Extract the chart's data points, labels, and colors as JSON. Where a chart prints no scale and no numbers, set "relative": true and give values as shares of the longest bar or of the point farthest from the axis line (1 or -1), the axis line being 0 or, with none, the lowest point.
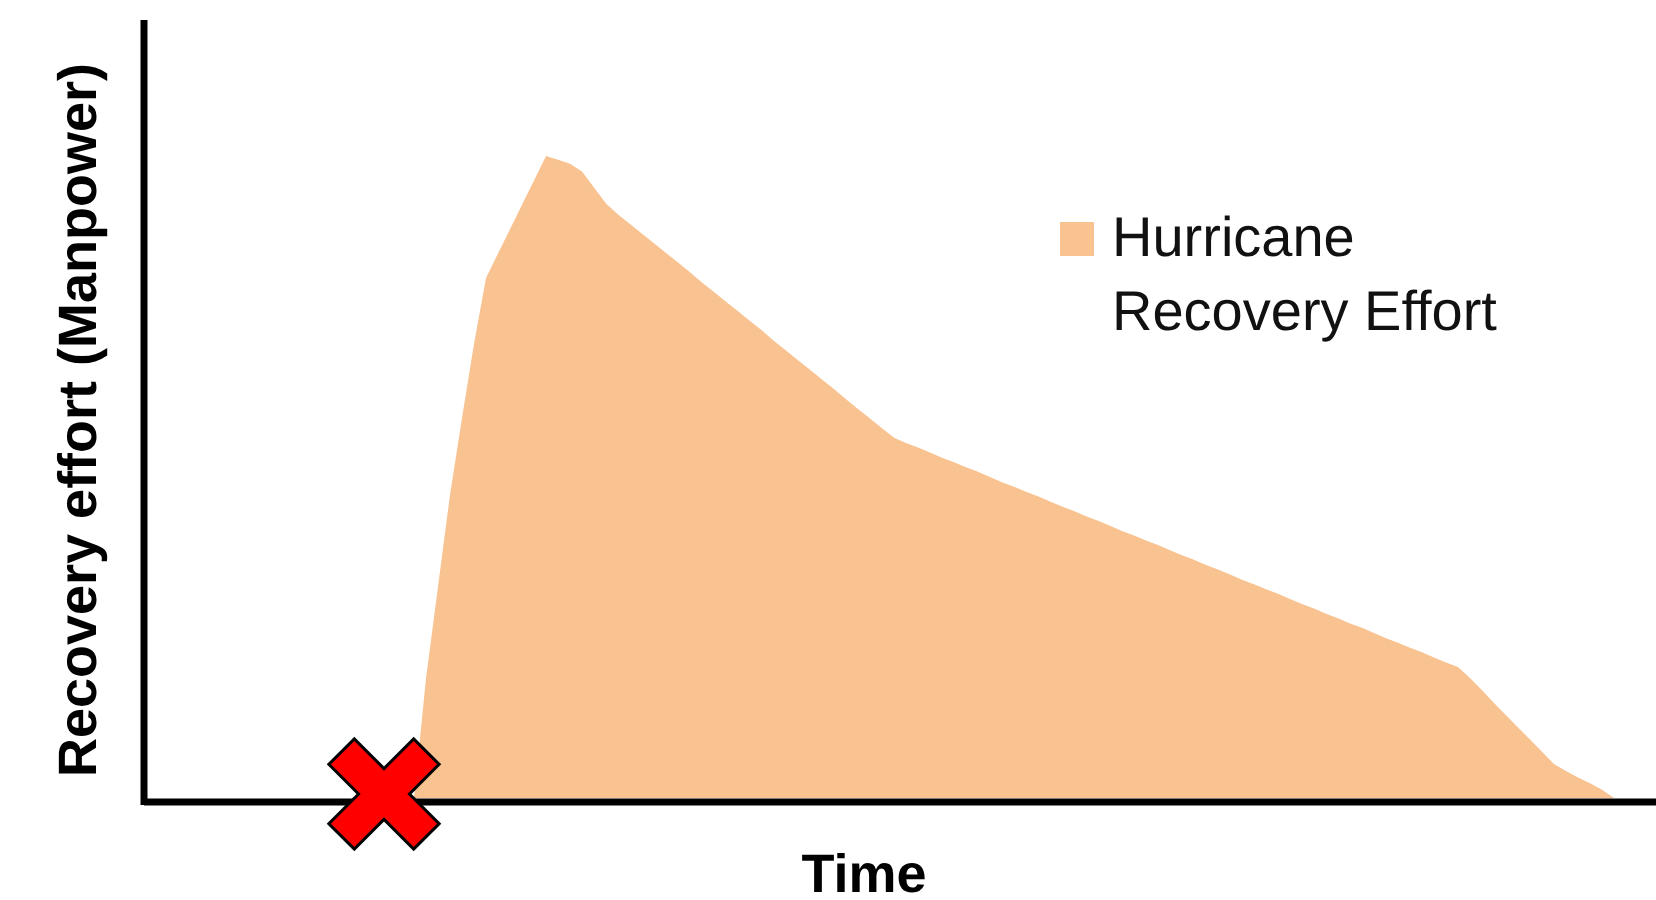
{
  "chart_data": {
    "type": "area",
    "xlabel": "Time",
    "ylabel": "Recovery effort (Manpower)",
    "relative": true,
    "legend": "top right",
    "categories": [
      null,
      null,
      null,
      null,
      null,
      null,
      null,
      null,
      null,
      null,
      null,
      null,
      null,
      null,
      null,
      null,
      null,
      null,
      null,
      null,
      null,
      null,
      null,
      null,
      null,
      null,
      null,
      null,
      null,
      null,
      null,
      null,
      null,
      null,
      null,
      null,
      null,
      null,
      null,
      null,
      null,
      null,
      null,
      null,
      null,
      null,
      null,
      null,
      null,
      null,
      null,
      null,
      null,
      null,
      null,
      null,
      null,
      null,
      null,
      null,
      null,
      null,
      null,
      null,
      null,
      null,
      null,
      null,
      null,
      null,
      null,
      null,
      null,
      null,
      null,
      null,
      null,
      null,
      null,
      null,
      null,
      null,
      null,
      null,
      null,
      null,
      null,
      null,
      null,
      null,
      null,
      null,
      null,
      null,
      null,
      null,
      null,
      null,
      null,
      null,
      null,
      null,
      null,
      null,
      null,
      null,
      null,
      null,
      null,
      null,
      null,
      null,
      null,
      null,
      null,
      null,
      null,
      null,
      null,
      null,
      null,
      null,
      null,
      null,
      null,
      null
    ],
    "series": [
      {
        "name": "Hurricane Recovery Effort",
        "color": "#f8c291",
        "values": [
          null,
          null,
          null,
          null,
          null,
          null,
          null,
          null,
          null,
          null,
          null,
          null,
          null,
          null,
          null,
          null,
          null,
          null,
          null,
          null,
          null,
          null,
          0,
          0.186,
          0.329,
          0.472,
          0.592,
          0.707,
          0.81,
          0.848,
          0.886,
          0.924,
          0.962,
          1,
          0.994,
          0.988,
          0.976,
          0.951,
          0.926,
          0.909,
          0.894,
          0.879,
          0.864,
          0.849,
          0.834,
          0.819,
          0.803,
          0.788,
          0.773,
          0.758,
          0.743,
          0.728,
          0.712,
          0.697,
          0.682,
          0.667,
          0.652,
          0.637,
          0.621,
          0.606,
          0.591,
          0.576,
          0.561,
          0.553,
          0.546,
          0.538,
          0.53,
          0.523,
          0.515,
          0.508,
          0.5,
          0.492,
          0.485,
          0.477,
          0.47,
          0.462,
          0.454,
          0.447,
          0.439,
          0.432,
          0.424,
          0.416,
          0.409,
          0.401,
          0.394,
          0.386,
          0.378,
          0.371,
          0.363,
          0.356,
          0.348,
          0.34,
          0.333,
          0.325,
          0.318,
          0.31,
          0.302,
          0.295,
          0.287,
          0.28,
          0.272,
          0.265,
          0.257,
          0.249,
          0.242,
          0.234,
          0.227,
          0.219,
          0.211,
          0.204,
          0.187,
          0.168,
          0.148,
          0.129,
          0.11,
          0.091,
          0.072,
          0.053,
          0.042,
          0.032,
          0.023,
          0.013,
          0,
          null,
          null,
          null
        ]
      }
    ]
  }
}
